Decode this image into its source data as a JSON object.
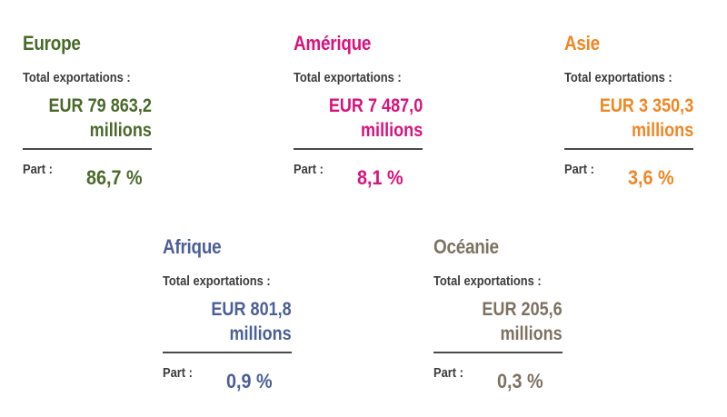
{
  "chart_data": {
    "type": "table",
    "labels": {
      "total": "Total exportations :",
      "part": "Part :"
    },
    "regions": [
      {
        "name": "Europe",
        "amount_line1": "EUR 79 863,2",
        "amount_line2": "millions",
        "share": "86,7 %",
        "value_eur_millions": 79863.2,
        "share_pct": 86.7,
        "color": "#4a6a2a"
      },
      {
        "name": "Amérique",
        "amount_line1": "EUR 7 487,0",
        "amount_line2": "millions",
        "share": "8,1 %",
        "value_eur_millions": 7487.0,
        "share_pct": 8.1,
        "color": "#d8127e"
      },
      {
        "name": "Asie",
        "amount_line1": "EUR 3 350,3",
        "amount_line2": "millions",
        "share": "3,6 %",
        "value_eur_millions": 3350.3,
        "share_pct": 3.6,
        "color": "#f08623"
      },
      {
        "name": "Afrique",
        "amount_line1": "EUR 801,8",
        "amount_line2": "millions",
        "share": "0,9 %",
        "value_eur_millions": 801.8,
        "share_pct": 0.9,
        "color": "#4c5f96"
      },
      {
        "name": "Océanie",
        "amount_line1": "EUR 205,6",
        "amount_line2": "millions",
        "share": "0,3 %",
        "value_eur_millions": 205.6,
        "share_pct": 0.3,
        "color": "#7d7262"
      }
    ]
  }
}
